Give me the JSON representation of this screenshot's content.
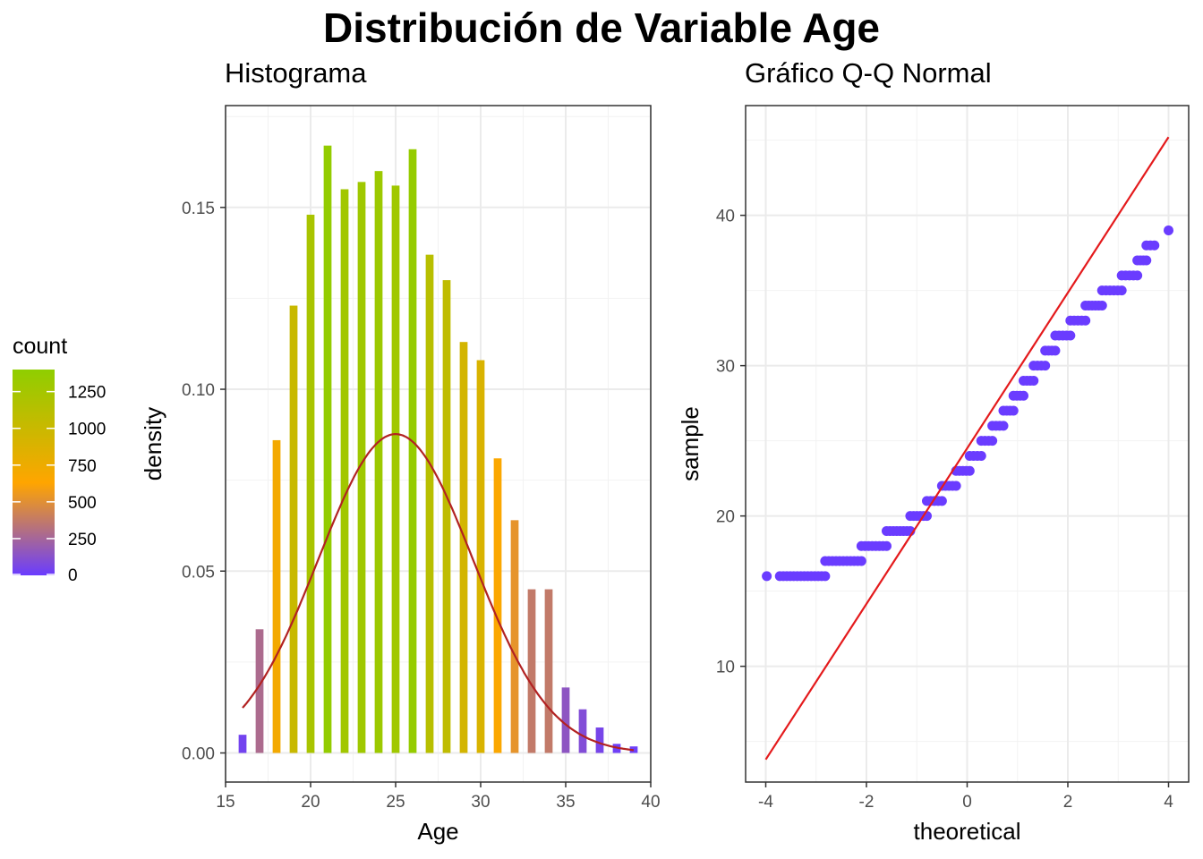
{
  "title": "Distribución de Variable Age",
  "chart_data": [
    {
      "type": "bar",
      "title": "Histograma",
      "xlabel": "Age",
      "ylabel": "density",
      "xlim": [
        15,
        40
      ],
      "ylim": [
        -0.008,
        0.178
      ],
      "xticks": [
        15,
        20,
        25,
        30,
        35,
        40
      ],
      "yticks": [
        0.0,
        0.05,
        0.1,
        0.15
      ],
      "ytick_labels": [
        "0.00",
        "0.05",
        "0.10",
        "0.15"
      ],
      "grid": true,
      "bins": [
        16,
        17,
        18,
        19,
        20,
        21,
        22,
        23,
        24,
        25,
        26,
        27,
        28,
        29,
        30,
        31,
        32,
        33,
        34,
        35,
        36,
        37,
        38,
        39
      ],
      "values": [
        0.005,
        0.034,
        0.086,
        0.123,
        0.148,
        0.167,
        0.155,
        0.157,
        0.16,
        0.156,
        0.166,
        0.137,
        0.13,
        0.113,
        0.108,
        0.081,
        0.064,
        0.045,
        0.045,
        0.018,
        0.012,
        0.007,
        0.0025,
        0.0018
      ],
      "counts": [
        40,
        280,
        710,
        1010,
        1220,
        1370,
        1270,
        1290,
        1310,
        1280,
        1360,
        1120,
        1070,
        930,
        890,
        660,
        525,
        370,
        370,
        150,
        100,
        55,
        20,
        15
      ],
      "normal_curve": {
        "mean": 25.0,
        "sd": 4.55,
        "range": [
          16,
          39
        ],
        "color": "#b22222"
      },
      "legend": {
        "title": "count",
        "placement": "left",
        "breaks": [
          1250,
          1000,
          750,
          500,
          250,
          0
        ],
        "range": [
          0,
          1400
        ],
        "colors": {
          "low": "#6a3cff",
          "mid": "#ffa500",
          "high": "#8fce00"
        }
      }
    },
    {
      "type": "scatter",
      "title": "Gráfico Q-Q Normal",
      "xlabel": "theoretical",
      "ylabel": "sample",
      "xlim": [
        -4.4,
        4.4
      ],
      "ylim": [
        2.3,
        47.3
      ],
      "xticks": [
        -4,
        -2,
        0,
        2,
        4
      ],
      "yticks": [
        10,
        20,
        30,
        40
      ],
      "grid": true,
      "point_color": "#6a3cff",
      "line_color": "#e41a1c",
      "reference_line": {
        "x": [
          -4,
          4
        ],
        "y": [
          3.8,
          45.2
        ]
      },
      "points": [
        {
          "x_from": -3.98,
          "x_to": -3.98,
          "y": 16
        },
        {
          "x_from": -3.72,
          "x_to": -2.82,
          "y": 16
        },
        {
          "x_from": -2.82,
          "x_to": -2.1,
          "y": 17
        },
        {
          "x_from": -2.1,
          "x_to": -1.6,
          "y": 18
        },
        {
          "x_from": -1.6,
          "x_to": -1.13,
          "y": 19
        },
        {
          "x_from": -1.13,
          "x_to": -0.8,
          "y": 20
        },
        {
          "x_from": -0.8,
          "x_to": -0.5,
          "y": 21
        },
        {
          "x_from": -0.5,
          "x_to": -0.22,
          "y": 22
        },
        {
          "x_from": -0.22,
          "x_to": 0.05,
          "y": 23
        },
        {
          "x_from": 0.05,
          "x_to": 0.28,
          "y": 24
        },
        {
          "x_from": 0.28,
          "x_to": 0.5,
          "y": 25
        },
        {
          "x_from": 0.5,
          "x_to": 0.72,
          "y": 26
        },
        {
          "x_from": 0.72,
          "x_to": 0.92,
          "y": 27
        },
        {
          "x_from": 0.92,
          "x_to": 1.12,
          "y": 28
        },
        {
          "x_from": 1.12,
          "x_to": 1.32,
          "y": 29
        },
        {
          "x_from": 1.32,
          "x_to": 1.55,
          "y": 30
        },
        {
          "x_from": 1.55,
          "x_to": 1.75,
          "y": 31
        },
        {
          "x_from": 1.75,
          "x_to": 2.05,
          "y": 32
        },
        {
          "x_from": 2.05,
          "x_to": 2.35,
          "y": 33
        },
        {
          "x_from": 2.35,
          "x_to": 2.68,
          "y": 34
        },
        {
          "x_from": 2.68,
          "x_to": 3.07,
          "y": 35
        },
        {
          "x_from": 3.07,
          "x_to": 3.38,
          "y": 36
        },
        {
          "x_from": 3.38,
          "x_to": 3.56,
          "y": 37
        },
        {
          "x_from": 3.56,
          "x_to": 3.72,
          "y": 38
        },
        {
          "x_from": 4.0,
          "x_to": 4.0,
          "y": 39
        }
      ]
    }
  ]
}
